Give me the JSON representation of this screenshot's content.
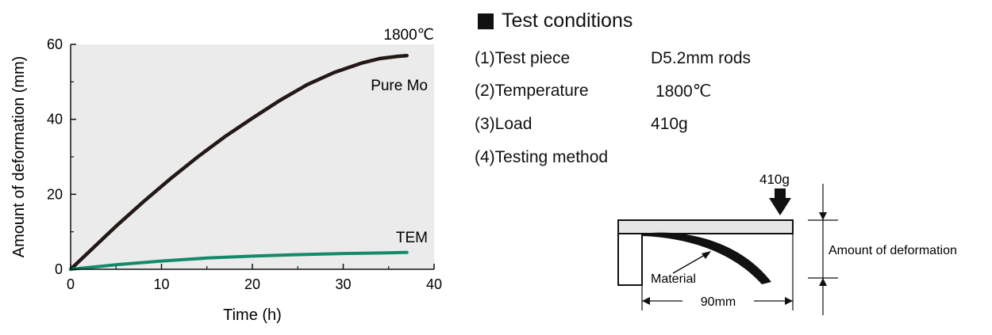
{
  "chart_data": {
    "type": "line",
    "title": "",
    "annotation": "1800℃",
    "xlabel": "Time (h)",
    "ylabel": "Amount of deformation (mm)",
    "xlim": [
      0,
      40
    ],
    "ylim": [
      0,
      60
    ],
    "xticks": [
      0,
      10,
      20,
      30,
      40
    ],
    "yticks": [
      0,
      20,
      40,
      60
    ],
    "plot_background": "#ebebeb",
    "grid": false,
    "series": [
      {
        "name": "Pure Mo",
        "color": "#231815",
        "x": [
          0,
          2,
          5,
          8,
          11,
          14,
          17,
          20,
          23,
          26,
          29,
          32,
          34,
          36,
          37
        ],
        "y": [
          0,
          4.6,
          11.5,
          18,
          24.2,
          30,
          35.4,
          40.3,
          45,
          49.2,
          52.5,
          55,
          56.2,
          56.8,
          57
        ]
      },
      {
        "name": "TEM",
        "color": "#138a6a",
        "x": [
          0,
          5,
          10,
          15,
          20,
          25,
          30,
          35,
          37
        ],
        "y": [
          0,
          1.2,
          2.2,
          3.0,
          3.5,
          3.9,
          4.2,
          4.4,
          4.5
        ]
      }
    ]
  },
  "conditions": {
    "title": "Test conditions",
    "items": [
      {
        "label": "(1)Test piece",
        "value": "D5.2mm rods"
      },
      {
        "label": "(2)Temperature",
        "value": "1800℃"
      },
      {
        "label": "(3)Load",
        "value": "410g"
      },
      {
        "label": "(4)Testing method",
        "value": ""
      }
    ]
  },
  "diagram": {
    "load_label": "410g",
    "deformation_label": "Amount of deformation",
    "material_label": "Material",
    "span_label": "90mm"
  }
}
